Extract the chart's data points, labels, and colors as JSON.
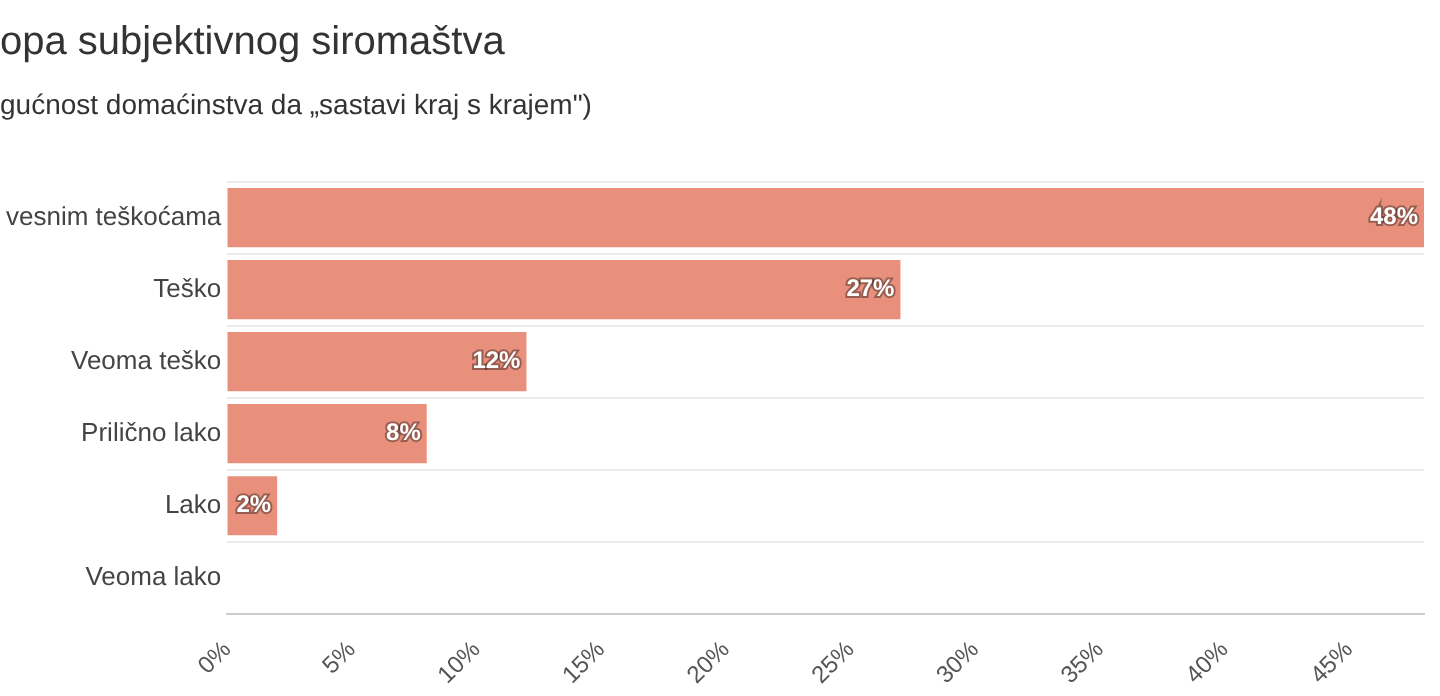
{
  "chart_data": {
    "type": "bar",
    "orientation": "horizontal",
    "title": "opa subjektivnog siromaštva",
    "subtitle": "gućnost domaćinstva da „sastavi kraj s krajem\")",
    "categories": [
      "vesnim teškoćama",
      "Teško",
      "Veoma teško",
      "Prilično lako",
      "Lako",
      "Veoma lako"
    ],
    "values": [
      48,
      27,
      12,
      8,
      2,
      0
    ],
    "value_labels": [
      "48%",
      "27%",
      "12%",
      "8%",
      "2%",
      null
    ],
    "color": "#e9907c",
    "xlim": [
      0,
      48
    ],
    "xticks": [
      {
        "value": 0,
        "label": "0%"
      },
      {
        "value": 5,
        "label": "5%"
      },
      {
        "value": 10,
        "label": "10%"
      },
      {
        "value": 15,
        "label": "15%"
      },
      {
        "value": 20,
        "label": "20%"
      },
      {
        "value": 25,
        "label": "25%"
      },
      {
        "value": 30,
        "label": "30%"
      },
      {
        "value": 35,
        "label": "35%"
      },
      {
        "value": 40,
        "label": "40%"
      },
      {
        "value": 45,
        "label": "45%"
      }
    ],
    "grid": "y"
  }
}
